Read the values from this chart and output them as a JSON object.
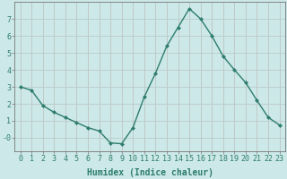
{
  "x": [
    0,
    1,
    2,
    3,
    4,
    5,
    6,
    7,
    8,
    9,
    10,
    11,
    12,
    13,
    14,
    15,
    16,
    17,
    18,
    19,
    20,
    21,
    22,
    23
  ],
  "y": [
    3.0,
    2.8,
    1.9,
    1.5,
    1.2,
    0.9,
    0.6,
    0.4,
    -0.3,
    -0.35,
    0.6,
    2.4,
    3.8,
    5.4,
    6.5,
    7.6,
    7.0,
    6.0,
    4.8,
    4.0,
    3.25,
    2.2,
    1.2,
    0.75
  ],
  "line_color": "#2e7d6e",
  "marker": "D",
  "marker_size": 2,
  "bg_color": "#cce8e8",
  "xlabel": "Humidex (Indice chaleur)",
  "ylim": [
    -0.8,
    8.0
  ],
  "xlim": [
    -0.5,
    23.5
  ],
  "yticks": [
    0,
    1,
    2,
    3,
    4,
    5,
    6,
    7
  ],
  "ytick_labels": [
    "-0",
    "1",
    "2",
    "3",
    "4",
    "5",
    "6",
    "7"
  ],
  "xticks": [
    0,
    1,
    2,
    3,
    4,
    5,
    6,
    7,
    8,
    9,
    10,
    11,
    12,
    13,
    14,
    15,
    16,
    17,
    18,
    19,
    20,
    21,
    22,
    23
  ],
  "xlabel_fontsize": 7,
  "tick_fontsize": 6,
  "grid_color": "#bbcccc",
  "grid_linewidth": 0.5
}
